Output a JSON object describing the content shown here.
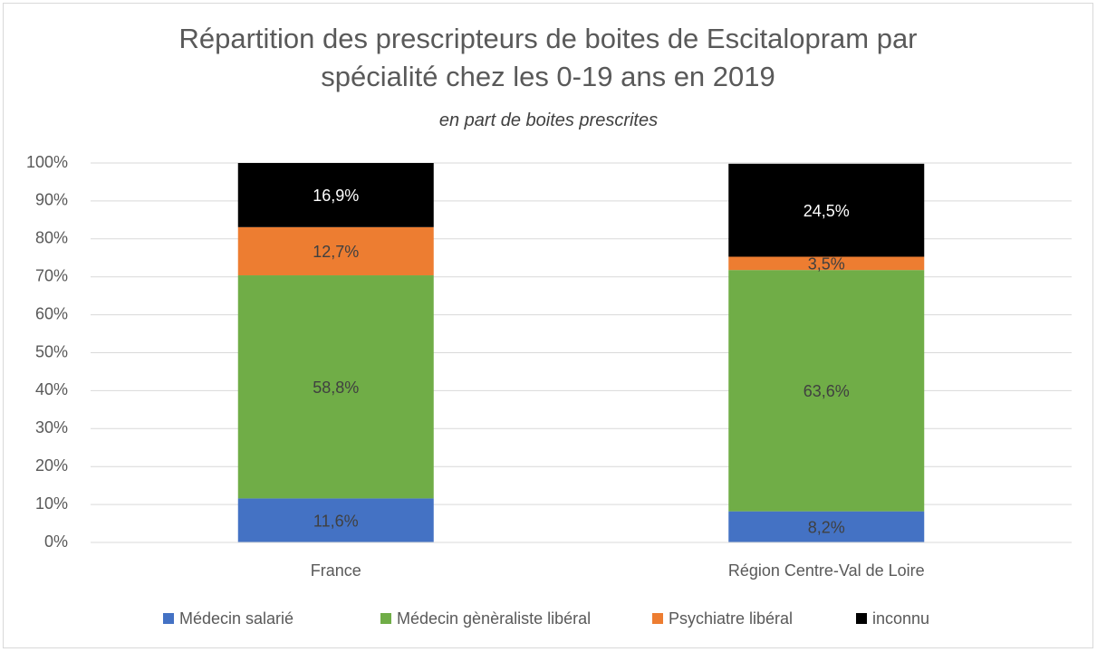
{
  "chart_data": {
    "type": "stacked_bar",
    "title": "Répartition des prescripteurs de boites de Escitalopram par spécialité chez les 0-19 ans en 2019",
    "subtitle": "en part de boites prescrites",
    "categories": [
      "France",
      "Région Centre-Val de Loire"
    ],
    "series": [
      {
        "name": "Médecin salarié",
        "color": "#4472c4",
        "values": [
          11.6,
          8.2
        ],
        "value_labels": [
          "11,6%",
          "8,2%"
        ]
      },
      {
        "name": "Médecin gènèraliste libéral",
        "color": "#70ad47",
        "values": [
          58.8,
          63.6
        ],
        "value_labels": [
          "58,8%",
          "63,6%"
        ]
      },
      {
        "name": "Psychiatre libéral",
        "color": "#ed7d31",
        "values": [
          12.7,
          3.5
        ],
        "value_labels": [
          "12,7%",
          "3,5%"
        ]
      },
      {
        "name": "inconnu",
        "color": "#000000",
        "values": [
          16.9,
          24.5
        ],
        "value_labels": [
          "16,9%",
          "24,5%"
        ]
      }
    ],
    "ylim": [
      0,
      100
    ],
    "yticks": [
      {
        "value": 0,
        "label": "0%"
      },
      {
        "value": 10,
        "label": "10%"
      },
      {
        "value": 20,
        "label": "20%"
      },
      {
        "value": 30,
        "label": "30%"
      },
      {
        "value": 40,
        "label": "40%"
      },
      {
        "value": 50,
        "label": "50%"
      },
      {
        "value": 60,
        "label": "60%"
      },
      {
        "value": 70,
        "label": "70%"
      },
      {
        "value": 80,
        "label": "80%"
      },
      {
        "value": 90,
        "label": "90%"
      },
      {
        "value": 100,
        "label": "100%"
      }
    ],
    "grid": true,
    "legend": "bottom"
  }
}
